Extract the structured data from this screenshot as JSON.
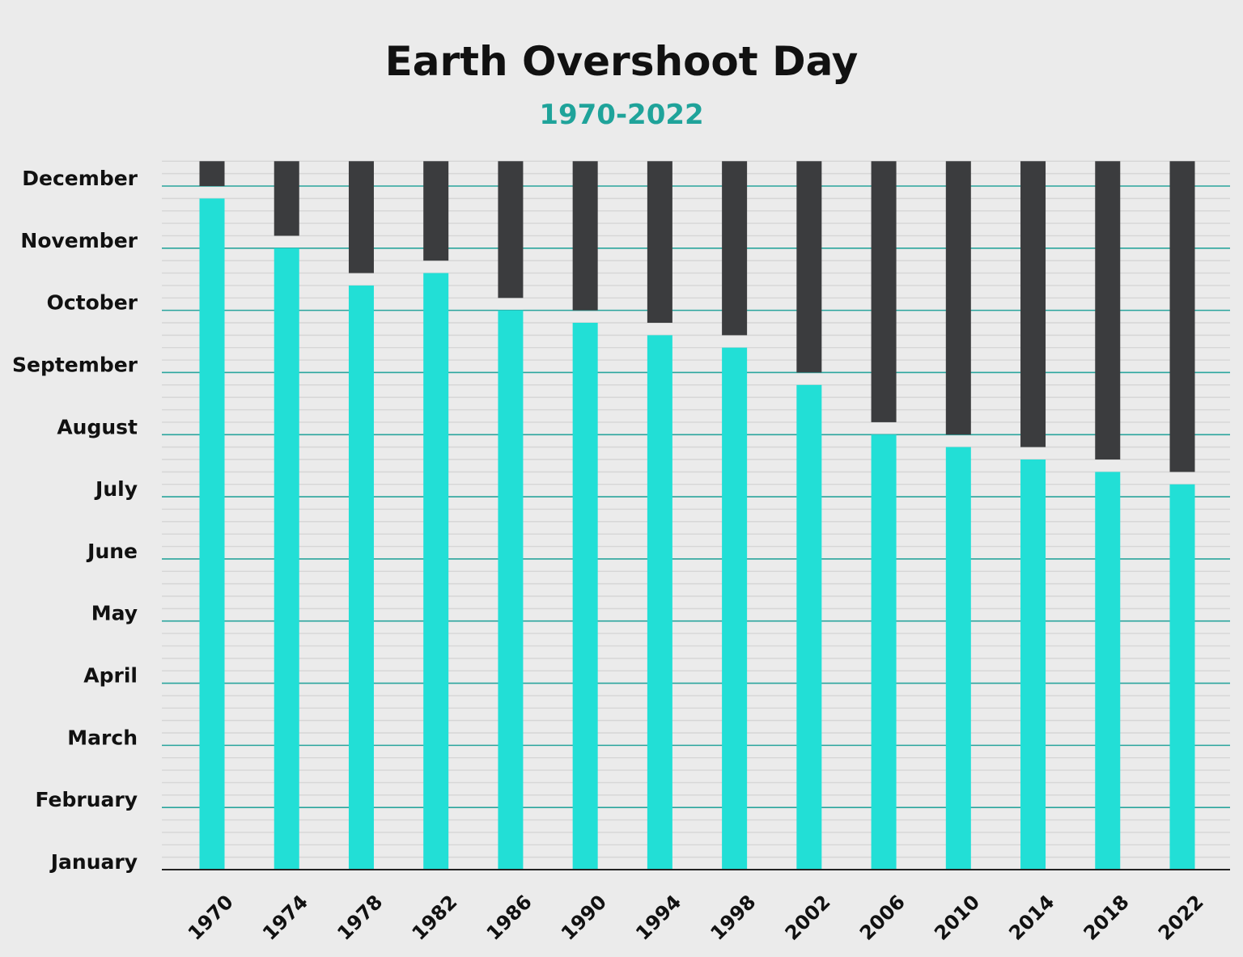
{
  "chart_data": {
    "type": "bar",
    "title": "Earth Overshoot Day",
    "subtitle": "1970-2022",
    "xlabel": "",
    "ylabel": "",
    "categories": [
      "1970",
      "1974",
      "1978",
      "1982",
      "1986",
      "1990",
      "1994",
      "1998",
      "2002",
      "2006",
      "2010",
      "2014",
      "2018",
      "2022"
    ],
    "y_tick_labels": [
      "January",
      "February",
      "March",
      "April",
      "May",
      "June",
      "July",
      "August",
      "September",
      "October",
      "November",
      "December"
    ],
    "y_unit": "months after start of January (January = 0, December = 11)",
    "ylim": [
      0,
      11.4
    ],
    "series": [
      {
        "values": [
          10.8,
          10.0,
          9.4,
          9.6,
          9.0,
          8.8,
          8.6,
          8.4,
          7.8,
          7.0,
          6.8,
          6.6,
          6.4,
          6.2
        ]
      },
      {
        "values_from": [
          11.0,
          10.2,
          9.6,
          9.8,
          9.2,
          9.0,
          8.8,
          8.6,
          8.0,
          7.2,
          7.0,
          6.8,
          6.6,
          6.4
        ],
        "values_to": 11.4
      }
    ],
    "minor_grid_step": 0.2,
    "grid": true,
    "colors": {
      "overshoot_bar": "#22dfd6",
      "remaining_bar": "#3b3c3e",
      "major_grid": "#2aa59d",
      "minor_grid": "#d6d6d6",
      "subtitle": "#1fa39a",
      "background": "#ebebeb"
    }
  }
}
